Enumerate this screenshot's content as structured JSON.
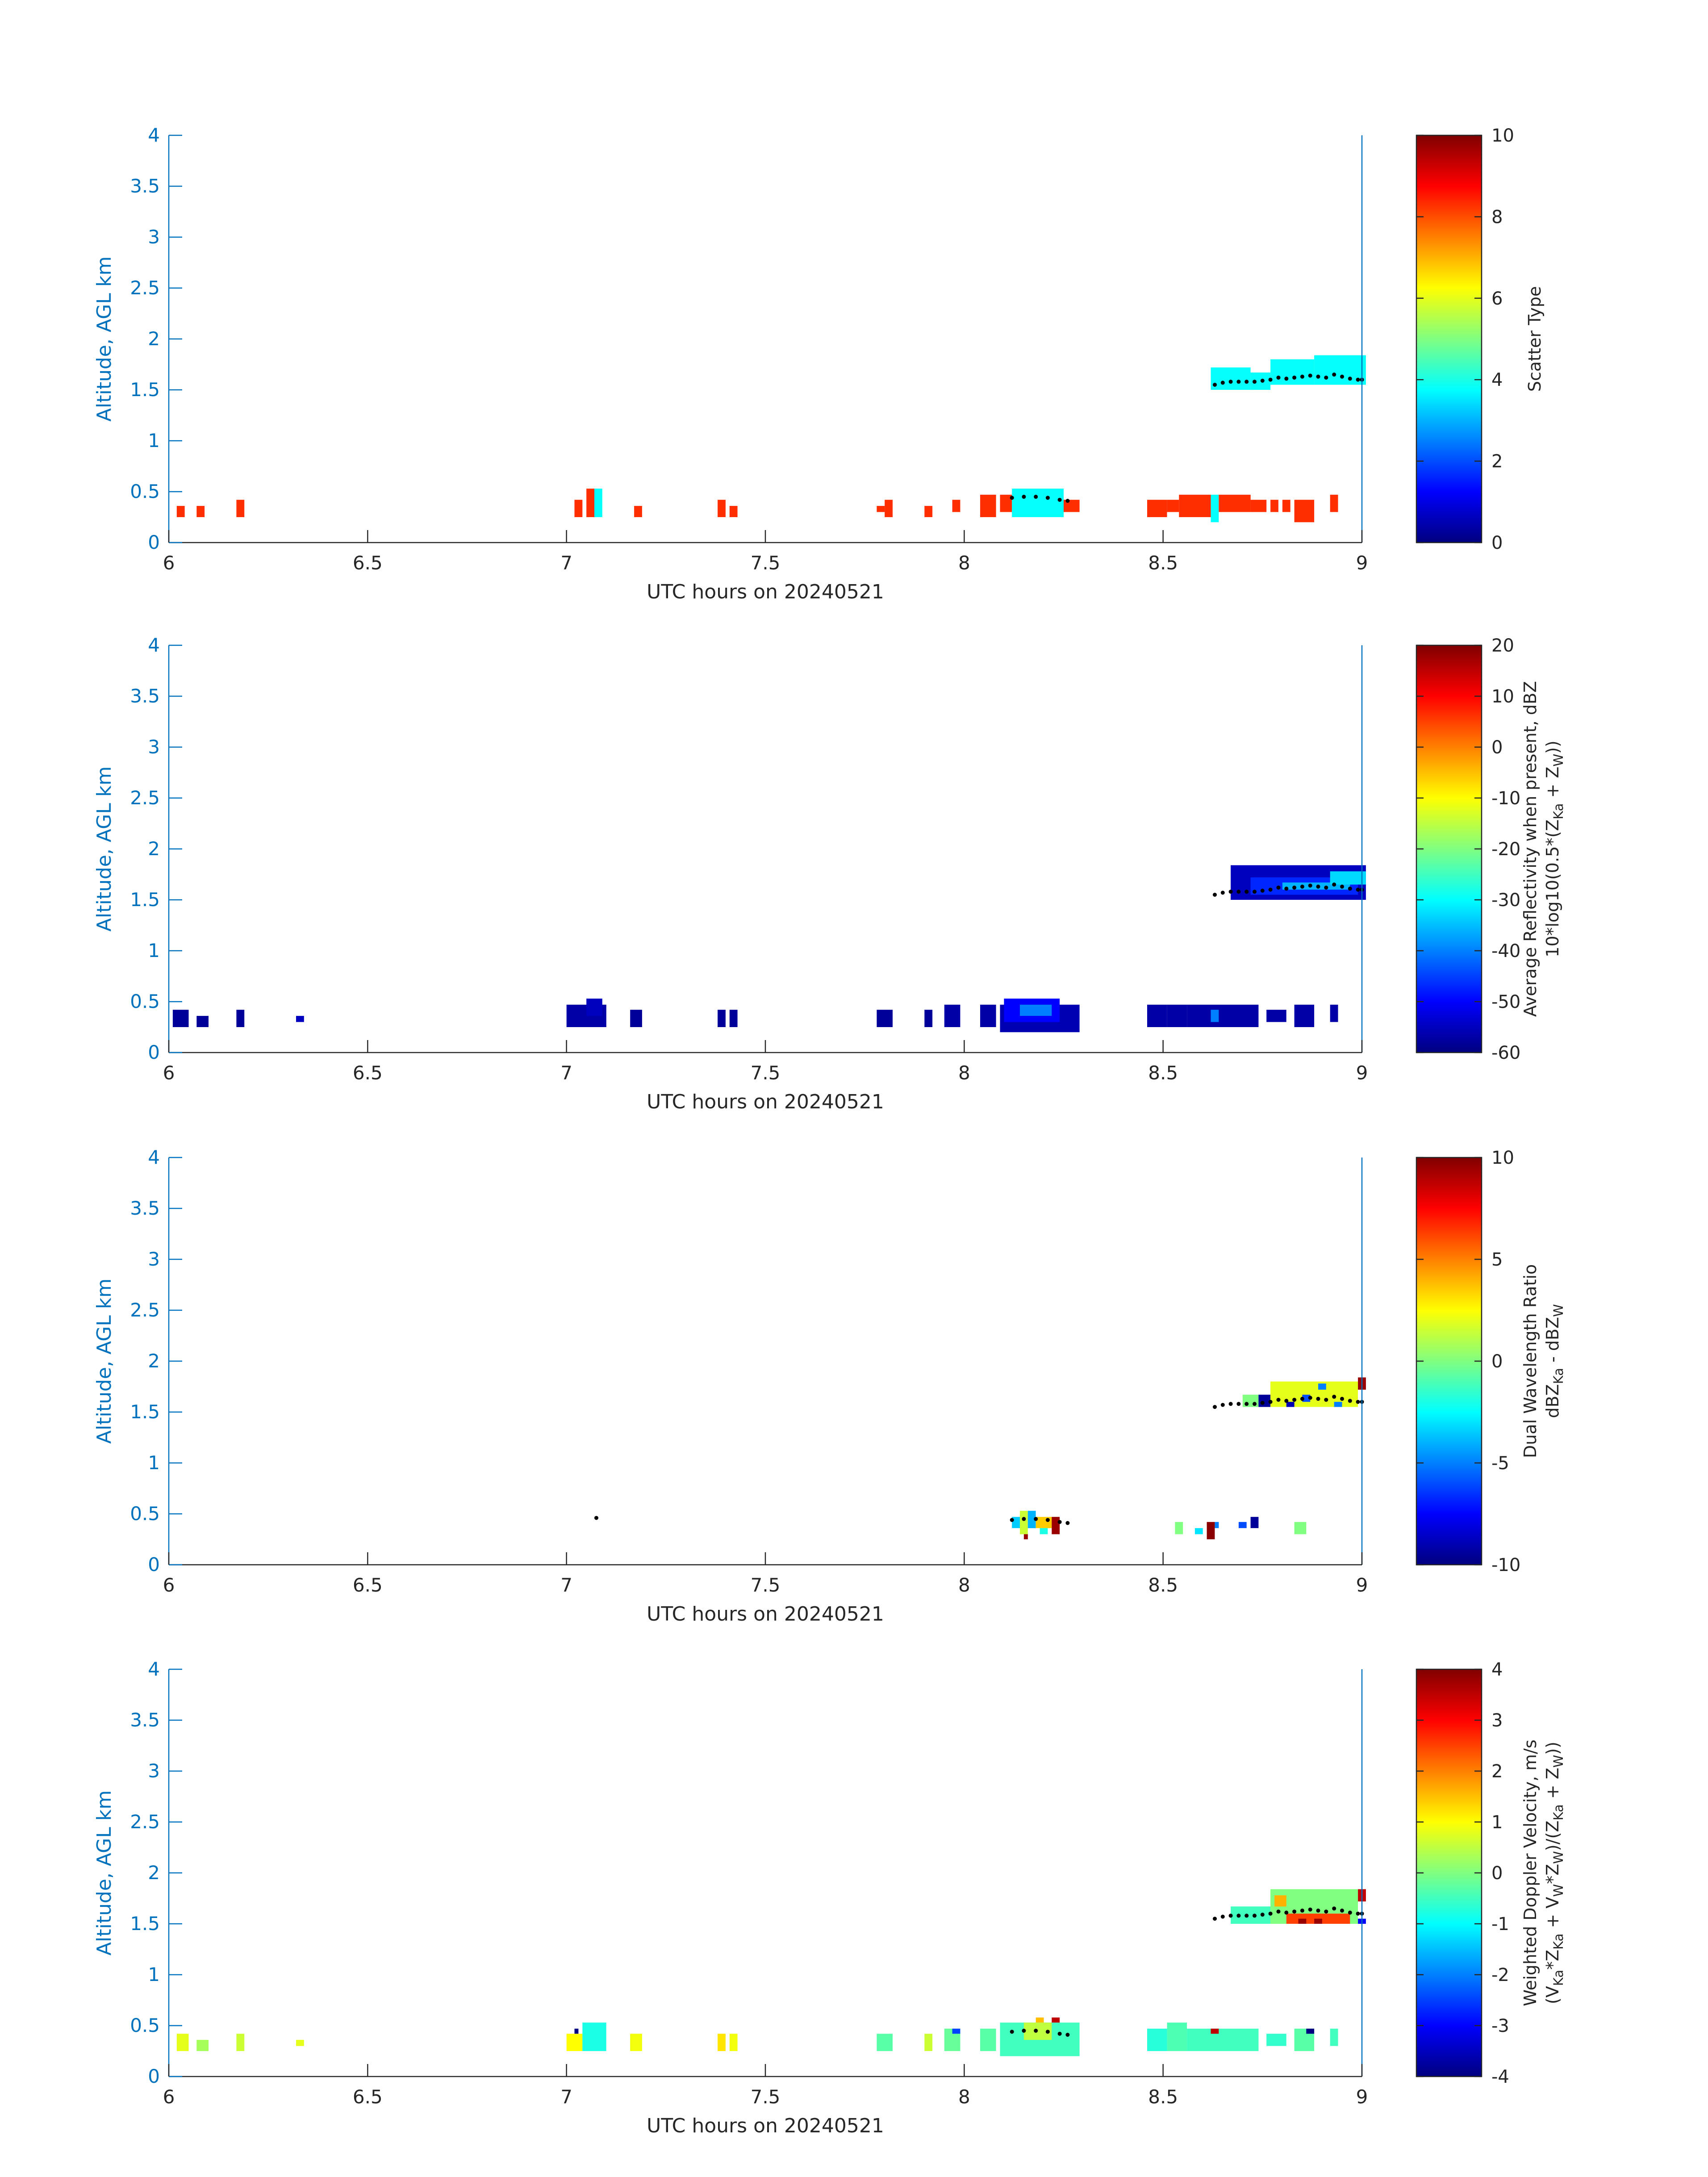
{
  "figure_title": "",
  "colors": {
    "axis_blue": "#0072BD",
    "text_dark": "#262626",
    "trace_black": "#000000"
  },
  "chart_data": [
    {
      "type": "heatmap",
      "title": "",
      "xlabel": "UTC hours on 20240521",
      "ylabel": "Altitude, AGL km",
      "xlim": [
        6,
        9
      ],
      "ylim": [
        0,
        4
      ],
      "xticks": [
        "6",
        "6.5",
        "7",
        "7.5",
        "8",
        "8.5",
        "9"
      ],
      "yticks": [
        "0",
        "0.5",
        "1",
        "1.5",
        "2",
        "2.5",
        "3",
        "3.5",
        "4"
      ],
      "colorbar": {
        "label_lines": [
          "Scatter Type"
        ],
        "range": [
          0,
          10
        ],
        "ticks": [
          "0",
          "2",
          "4",
          "6",
          "8",
          "10"
        ]
      },
      "cells": [
        {
          "t0": 6.02,
          "t1": 6.04,
          "z0": 0.25,
          "z1": 0.36,
          "v": 8.3
        },
        {
          "t0": 6.07,
          "t1": 6.09,
          "z0": 0.25,
          "z1": 0.36,
          "v": 8.3
        },
        {
          "t0": 6.17,
          "t1": 6.19,
          "z0": 0.25,
          "z1": 0.42,
          "v": 8.3
        },
        {
          "t0": 7.02,
          "t1": 7.04,
          "z0": 0.25,
          "z1": 0.42,
          "v": 8.3
        },
        {
          "t0": 7.05,
          "t1": 7.07,
          "z0": 0.25,
          "z1": 0.53,
          "v": 8.3
        },
        {
          "t0": 7.07,
          "t1": 7.09,
          "z0": 0.25,
          "z1": 0.53,
          "v": 3.8
        },
        {
          "t0": 7.17,
          "t1": 7.19,
          "z0": 0.25,
          "z1": 0.36,
          "v": 8.3
        },
        {
          "t0": 7.38,
          "t1": 7.4,
          "z0": 0.25,
          "z1": 0.42,
          "v": 8.3
        },
        {
          "t0": 7.41,
          "t1": 7.43,
          "z0": 0.25,
          "z1": 0.36,
          "v": 8.3
        },
        {
          "t0": 7.78,
          "t1": 7.8,
          "z0": 0.3,
          "z1": 0.36,
          "v": 8.3
        },
        {
          "t0": 7.8,
          "t1": 7.82,
          "z0": 0.25,
          "z1": 0.42,
          "v": 8.3
        },
        {
          "t0": 7.9,
          "t1": 7.92,
          "z0": 0.25,
          "z1": 0.36,
          "v": 8.3
        },
        {
          "t0": 7.97,
          "t1": 7.99,
          "z0": 0.3,
          "z1": 0.42,
          "v": 8.3
        },
        {
          "t0": 8.04,
          "t1": 8.08,
          "z0": 0.25,
          "z1": 0.47,
          "v": 8.3
        },
        {
          "t0": 8.09,
          "t1": 8.12,
          "z0": 0.3,
          "z1": 0.47,
          "v": 8.3
        },
        {
          "t0": 8.12,
          "t1": 8.25,
          "z0": 0.25,
          "z1": 0.53,
          "v": 3.8
        },
        {
          "t0": 8.25,
          "t1": 8.29,
          "z0": 0.3,
          "z1": 0.42,
          "v": 8.3
        },
        {
          "t0": 8.46,
          "t1": 8.51,
          "z0": 0.25,
          "z1": 0.42,
          "v": 8.3
        },
        {
          "t0": 8.51,
          "t1": 8.54,
          "z0": 0.3,
          "z1": 0.42,
          "v": 8.3
        },
        {
          "t0": 8.54,
          "t1": 8.62,
          "z0": 0.25,
          "z1": 0.47,
          "v": 8.3
        },
        {
          "t0": 8.62,
          "t1": 8.64,
          "z0": 0.2,
          "z1": 0.47,
          "v": 3.8
        },
        {
          "t0": 8.64,
          "t1": 8.72,
          "z0": 0.3,
          "z1": 0.47,
          "v": 8.3
        },
        {
          "t0": 8.72,
          "t1": 8.76,
          "z0": 0.3,
          "z1": 0.42,
          "v": 8.3
        },
        {
          "t0": 8.77,
          "t1": 8.79,
          "z0": 0.3,
          "z1": 0.42,
          "v": 8.3
        },
        {
          "t0": 8.8,
          "t1": 8.82,
          "z0": 0.3,
          "z1": 0.42,
          "v": 8.3
        },
        {
          "t0": 8.83,
          "t1": 8.88,
          "z0": 0.2,
          "z1": 0.42,
          "v": 8.3
        },
        {
          "t0": 8.92,
          "t1": 8.94,
          "z0": 0.3,
          "z1": 0.47,
          "v": 8.3
        },
        {
          "t0": 8.62,
          "t1": 8.72,
          "z0": 1.5,
          "z1": 1.72,
          "v": 3.8
        },
        {
          "t0": 8.72,
          "t1": 8.77,
          "z0": 1.5,
          "z1": 1.67,
          "v": 3.8
        },
        {
          "t0": 8.77,
          "t1": 8.88,
          "z0": 1.55,
          "z1": 1.8,
          "v": 3.8
        },
        {
          "t0": 8.88,
          "t1": 9.01,
          "z0": 1.55,
          "z1": 1.84,
          "v": 3.8
        }
      ]
    },
    {
      "type": "heatmap",
      "title": "",
      "xlabel": "UTC hours on 20240521",
      "ylabel": "Altitude, AGL km",
      "xlim": [
        6,
        9
      ],
      "ylim": [
        0,
        4
      ],
      "xticks": [
        "6",
        "6.5",
        "7",
        "7.5",
        "8",
        "8.5",
        "9"
      ],
      "yticks": [
        "0",
        "0.5",
        "1",
        "1.5",
        "2",
        "2.5",
        "3",
        "3.5",
        "4"
      ],
      "colorbar": {
        "label_lines": [
          "Average Reflectivity when present, dBZ",
          "10*log10(0.5*(Z_Ka + Z_W))"
        ],
        "range": [
          -60,
          20
        ],
        "ticks": [
          "-60",
          "-50",
          "-40",
          "-30",
          "-20",
          "-10",
          "0",
          "10",
          "20"
        ]
      },
      "cells": [
        {
          "t0": 6.01,
          "t1": 6.05,
          "z0": 0.25,
          "z1": 0.42,
          "v": -58
        },
        {
          "t0": 6.07,
          "t1": 6.1,
          "z0": 0.25,
          "z1": 0.36,
          "v": -58
        },
        {
          "t0": 6.17,
          "t1": 6.19,
          "z0": 0.25,
          "z1": 0.42,
          "v": -58
        },
        {
          "t0": 6.32,
          "t1": 6.34,
          "z0": 0.3,
          "z1": 0.36,
          "v": -55
        },
        {
          "t0": 7.0,
          "t1": 7.1,
          "z0": 0.25,
          "z1": 0.47,
          "v": -57
        },
        {
          "t0": 7.05,
          "t1": 7.09,
          "z0": 0.36,
          "z1": 0.53,
          "v": -55
        },
        {
          "t0": 7.16,
          "t1": 7.19,
          "z0": 0.25,
          "z1": 0.42,
          "v": -58
        },
        {
          "t0": 7.38,
          "t1": 7.4,
          "z0": 0.25,
          "z1": 0.42,
          "v": -58
        },
        {
          "t0": 7.41,
          "t1": 7.43,
          "z0": 0.25,
          "z1": 0.42,
          "v": -58
        },
        {
          "t0": 7.78,
          "t1": 7.82,
          "z0": 0.25,
          "z1": 0.42,
          "v": -58
        },
        {
          "t0": 7.9,
          "t1": 7.92,
          "z0": 0.25,
          "z1": 0.42,
          "v": -58
        },
        {
          "t0": 7.95,
          "t1": 7.99,
          "z0": 0.25,
          "z1": 0.47,
          "v": -57
        },
        {
          "t0": 8.04,
          "t1": 8.08,
          "z0": 0.25,
          "z1": 0.47,
          "v": -57
        },
        {
          "t0": 8.09,
          "t1": 8.29,
          "z0": 0.2,
          "z1": 0.47,
          "v": -56
        },
        {
          "t0": 8.1,
          "t1": 8.24,
          "z0": 0.3,
          "z1": 0.53,
          "v": -50
        },
        {
          "t0": 8.14,
          "t1": 8.22,
          "z0": 0.36,
          "z1": 0.47,
          "v": -40
        },
        {
          "t0": 8.46,
          "t1": 8.51,
          "z0": 0.25,
          "z1": 0.47,
          "v": -57
        },
        {
          "t0": 8.51,
          "t1": 8.56,
          "z0": 0.25,
          "z1": 0.47,
          "v": -57
        },
        {
          "t0": 8.56,
          "t1": 8.74,
          "z0": 0.25,
          "z1": 0.47,
          "v": -57
        },
        {
          "t0": 8.62,
          "t1": 8.64,
          "z0": 0.3,
          "z1": 0.42,
          "v": -40
        },
        {
          "t0": 8.76,
          "t1": 8.81,
          "z0": 0.3,
          "z1": 0.42,
          "v": -57
        },
        {
          "t0": 8.83,
          "t1": 8.88,
          "z0": 0.25,
          "z1": 0.47,
          "v": -57
        },
        {
          "t0": 8.92,
          "t1": 8.94,
          "z0": 0.3,
          "z1": 0.47,
          "v": -57
        },
        {
          "t0": 8.67,
          "t1": 9.01,
          "z0": 1.5,
          "z1": 1.84,
          "v": -55
        },
        {
          "t0": 8.72,
          "t1": 8.99,
          "z0": 1.55,
          "z1": 1.72,
          "v": -47
        },
        {
          "t0": 8.8,
          "t1": 8.97,
          "z0": 1.6,
          "z1": 1.67,
          "v": -36
        },
        {
          "t0": 8.92,
          "t1": 9.01,
          "z0": 1.65,
          "z1": 1.78,
          "v": -33
        }
      ]
    },
    {
      "type": "heatmap",
      "title": "",
      "xlabel": "UTC hours on 20240521",
      "ylabel": "Altitude, AGL km",
      "xlim": [
        6,
        9
      ],
      "ylim": [
        0,
        4
      ],
      "xticks": [
        "6",
        "6.5",
        "7",
        "7.5",
        "8",
        "8.5",
        "9"
      ],
      "yticks": [
        "0",
        "0.5",
        "1",
        "1.5",
        "2",
        "2.5",
        "3",
        "3.5",
        "4"
      ],
      "colorbar": {
        "label_lines": [
          "Dual Wavelength Ratio",
          "dBZ_Ka - dBZ_W"
        ],
        "range": [
          -10,
          10
        ],
        "ticks": [
          "-10",
          "-5",
          "0",
          "5",
          "10"
        ]
      },
      "cells": [
        {
          "t0": 8.12,
          "t1": 8.14,
          "z0": 0.36,
          "z1": 0.47,
          "v": -3.5
        },
        {
          "t0": 8.14,
          "t1": 8.16,
          "z0": 0.3,
          "z1": 0.53,
          "v": 1.5
        },
        {
          "t0": 8.16,
          "t1": 8.18,
          "z0": 0.36,
          "z1": 0.53,
          "v": -4
        },
        {
          "t0": 8.18,
          "t1": 8.22,
          "z0": 0.36,
          "z1": 0.47,
          "v": 3.5
        },
        {
          "t0": 8.22,
          "t1": 8.24,
          "z0": 0.3,
          "z1": 0.47,
          "v": 9.5
        },
        {
          "t0": 8.15,
          "t1": 8.16,
          "z0": 0.25,
          "z1": 0.3,
          "v": 9.5
        },
        {
          "t0": 8.19,
          "t1": 8.21,
          "z0": 0.3,
          "z1": 0.36,
          "v": -2
        },
        {
          "t0": 8.53,
          "t1": 8.55,
          "z0": 0.3,
          "z1": 0.42,
          "v": 0
        },
        {
          "t0": 8.58,
          "t1": 8.6,
          "z0": 0.3,
          "z1": 0.36,
          "v": -3
        },
        {
          "t0": 8.61,
          "t1": 8.63,
          "z0": 0.25,
          "z1": 0.42,
          "v": 9.8
        },
        {
          "t0": 8.63,
          "t1": 8.64,
          "z0": 0.36,
          "z1": 0.42,
          "v": -5
        },
        {
          "t0": 8.69,
          "t1": 8.71,
          "z0": 0.36,
          "z1": 0.42,
          "v": -6
        },
        {
          "t0": 8.72,
          "t1": 8.74,
          "z0": 0.36,
          "z1": 0.47,
          "v": -9.5
        },
        {
          "t0": 8.83,
          "t1": 8.86,
          "z0": 0.3,
          "z1": 0.42,
          "v": 0
        },
        {
          "t0": 8.7,
          "t1": 8.74,
          "z0": 1.55,
          "z1": 1.67,
          "v": 0
        },
        {
          "t0": 8.74,
          "t1": 8.77,
          "z0": 1.55,
          "z1": 1.67,
          "v": -9.5
        },
        {
          "t0": 8.77,
          "t1": 8.99,
          "z0": 1.55,
          "z1": 1.8,
          "v": 2
        },
        {
          "t0": 8.81,
          "t1": 8.83,
          "z0": 1.55,
          "z1": 1.6,
          "v": -9
        },
        {
          "t0": 8.85,
          "t1": 8.87,
          "z0": 1.6,
          "z1": 1.67,
          "v": -6
        },
        {
          "t0": 8.89,
          "t1": 8.91,
          "z0": 1.72,
          "z1": 1.78,
          "v": -5
        },
        {
          "t0": 8.93,
          "t1": 8.95,
          "z0": 1.55,
          "z1": 1.6,
          "v": -5
        },
        {
          "t0": 8.99,
          "t1": 9.01,
          "z0": 1.72,
          "z1": 1.84,
          "v": 9.5
        }
      ]
    },
    {
      "type": "heatmap",
      "title": "",
      "xlabel": "UTC hours on 20240521",
      "ylabel": "Altitude, AGL km",
      "xlim": [
        6,
        9
      ],
      "ylim": [
        0,
        4
      ],
      "xticks": [
        "6",
        "6.5",
        "7",
        "7.5",
        "8",
        "8.5",
        "9"
      ],
      "yticks": [
        "0",
        "0.5",
        "1",
        "1.5",
        "2",
        "2.5",
        "3",
        "3.5",
        "4"
      ],
      "colorbar": {
        "label_lines": [
          "Weighted Doppler Velocity, m/s",
          "(V_Ka*Z_Ka + V_W*Z_W)/(Z_Ka + Z_W))"
        ],
        "range": [
          -4,
          4
        ],
        "ticks": [
          "-4",
          "-3",
          "-2",
          "-1",
          "0",
          "1",
          "2",
          "3",
          "4"
        ]
      },
      "cells": [
        {
          "t0": 6.02,
          "t1": 6.05,
          "z0": 0.25,
          "z1": 0.42,
          "v": 0.8
        },
        {
          "t0": 6.07,
          "t1": 6.1,
          "z0": 0.25,
          "z1": 0.36,
          "v": 0.3
        },
        {
          "t0": 6.17,
          "t1": 6.19,
          "z0": 0.25,
          "z1": 0.42,
          "v": 0.6
        },
        {
          "t0": 6.32,
          "t1": 6.34,
          "z0": 0.3,
          "z1": 0.36,
          "v": 0.8
        },
        {
          "t0": 7.0,
          "t1": 7.04,
          "z0": 0.25,
          "z1": 0.42,
          "v": 1.0
        },
        {
          "t0": 7.04,
          "t1": 7.1,
          "z0": 0.25,
          "z1": 0.53,
          "v": -0.8
        },
        {
          "t0": 7.02,
          "t1": 7.03,
          "z0": 0.42,
          "z1": 0.47,
          "v": -4.0
        },
        {
          "t0": 7.16,
          "t1": 7.19,
          "z0": 0.25,
          "z1": 0.42,
          "v": 0.9
        },
        {
          "t0": 7.38,
          "t1": 7.4,
          "z0": 0.25,
          "z1": 0.42,
          "v": 1.2
        },
        {
          "t0": 7.41,
          "t1": 7.43,
          "z0": 0.25,
          "z1": 0.42,
          "v": 0.9
        },
        {
          "t0": 7.78,
          "t1": 7.82,
          "z0": 0.25,
          "z1": 0.42,
          "v": -0.3
        },
        {
          "t0": 7.9,
          "t1": 7.92,
          "z0": 0.25,
          "z1": 0.42,
          "v": 0.6
        },
        {
          "t0": 7.95,
          "t1": 7.99,
          "z0": 0.25,
          "z1": 0.47,
          "v": -0.2
        },
        {
          "t0": 7.97,
          "t1": 7.99,
          "z0": 0.42,
          "z1": 0.47,
          "v": -2.5
        },
        {
          "t0": 8.04,
          "t1": 8.08,
          "z0": 0.25,
          "z1": 0.47,
          "v": -0.3
        },
        {
          "t0": 8.09,
          "t1": 8.29,
          "z0": 0.2,
          "z1": 0.53,
          "v": -0.5
        },
        {
          "t0": 8.15,
          "t1": 8.22,
          "z0": 0.36,
          "z1": 0.53,
          "v": 0.5
        },
        {
          "t0": 8.22,
          "t1": 8.24,
          "z0": 0.53,
          "z1": 0.58,
          "v": 3.5
        },
        {
          "t0": 8.18,
          "t1": 8.2,
          "z0": 0.53,
          "z1": 0.58,
          "v": 1.5
        },
        {
          "t0": 8.46,
          "t1": 8.51,
          "z0": 0.25,
          "z1": 0.47,
          "v": -0.7
        },
        {
          "t0": 8.51,
          "t1": 8.56,
          "z0": 0.25,
          "z1": 0.53,
          "v": -0.4
        },
        {
          "t0": 8.56,
          "t1": 8.74,
          "z0": 0.25,
          "z1": 0.47,
          "v": -0.5
        },
        {
          "t0": 8.62,
          "t1": 8.64,
          "z0": 0.42,
          "z1": 0.47,
          "v": 3.5
        },
        {
          "t0": 8.76,
          "t1": 8.81,
          "z0": 0.3,
          "z1": 0.42,
          "v": -0.6
        },
        {
          "t0": 8.83,
          "t1": 8.88,
          "z0": 0.25,
          "z1": 0.47,
          "v": -0.3
        },
        {
          "t0": 8.86,
          "t1": 8.88,
          "z0": 0.42,
          "z1": 0.47,
          "v": -4.0
        },
        {
          "t0": 8.92,
          "t1": 8.94,
          "z0": 0.3,
          "z1": 0.47,
          "v": -0.5
        },
        {
          "t0": 8.67,
          "t1": 8.77,
          "z0": 1.5,
          "z1": 1.67,
          "v": -0.5
        },
        {
          "t0": 8.77,
          "t1": 8.99,
          "z0": 1.5,
          "z1": 1.84,
          "v": 0.0
        },
        {
          "t0": 8.78,
          "t1": 8.81,
          "z0": 1.67,
          "z1": 1.78,
          "v": 1.6
        },
        {
          "t0": 8.81,
          "t1": 8.97,
          "z0": 1.5,
          "z1": 1.6,
          "v": 2.5
        },
        {
          "t0": 8.84,
          "t1": 8.86,
          "z0": 1.5,
          "z1": 1.55,
          "v": 3.8
        },
        {
          "t0": 8.88,
          "t1": 8.9,
          "z0": 1.5,
          "z1": 1.55,
          "v": 3.8
        },
        {
          "t0": 8.99,
          "t1": 9.01,
          "z0": 1.72,
          "z1": 1.84,
          "v": 3.5
        },
        {
          "t0": 8.99,
          "t1": 9.01,
          "z0": 1.5,
          "z1": 1.55,
          "v": -3.0
        }
      ]
    }
  ],
  "traces": {
    "low": [
      [
        8.12,
        0.44
      ],
      [
        8.15,
        0.45
      ],
      [
        8.18,
        0.45
      ],
      [
        8.21,
        0.44
      ],
      [
        8.24,
        0.42
      ],
      [
        8.26,
        0.41
      ]
    ],
    "low_single": [
      [
        7.075,
        0.46
      ]
    ],
    "high": [
      [
        8.63,
        1.55
      ],
      [
        8.65,
        1.57
      ],
      [
        8.67,
        1.58
      ],
      [
        8.69,
        1.58
      ],
      [
        8.71,
        1.58
      ],
      [
        8.73,
        1.58
      ],
      [
        8.75,
        1.59
      ],
      [
        8.77,
        1.6
      ],
      [
        8.79,
        1.62
      ],
      [
        8.81,
        1.61
      ],
      [
        8.83,
        1.62
      ],
      [
        8.85,
        1.63
      ],
      [
        8.87,
        1.64
      ],
      [
        8.89,
        1.63
      ],
      [
        8.91,
        1.62
      ],
      [
        8.93,
        1.65
      ],
      [
        8.95,
        1.63
      ],
      [
        8.97,
        1.61
      ],
      [
        8.99,
        1.6
      ],
      [
        9.0,
        1.6
      ]
    ]
  }
}
